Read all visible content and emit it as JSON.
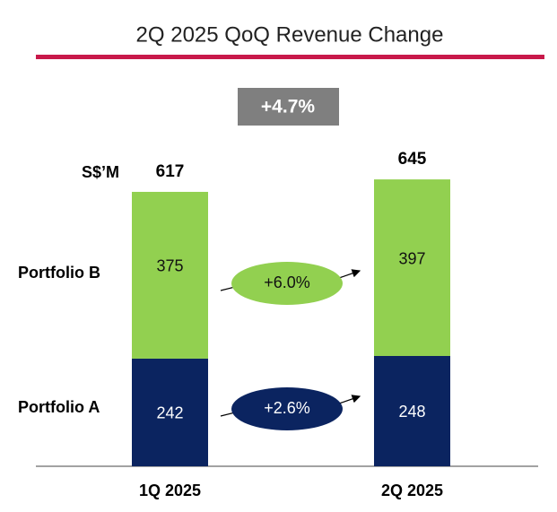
{
  "chart_data": {
    "type": "stacked-bar",
    "title": "2Q 2025 QoQ Revenue Change",
    "unit_label": "S$’M",
    "categories": [
      "1Q 2025",
      "2Q 2025"
    ],
    "series": [
      {
        "name": "Portfolio A",
        "color": "#0b2460",
        "values": [
          242,
          248
        ],
        "change_label": "+2.6%"
      },
      {
        "name": "Portfolio B",
        "color": "#92d050",
        "values": [
          375,
          397
        ],
        "change_label": "+6.0%"
      }
    ],
    "totals": [
      617,
      645
    ],
    "total_change_label": "+4.7%"
  }
}
